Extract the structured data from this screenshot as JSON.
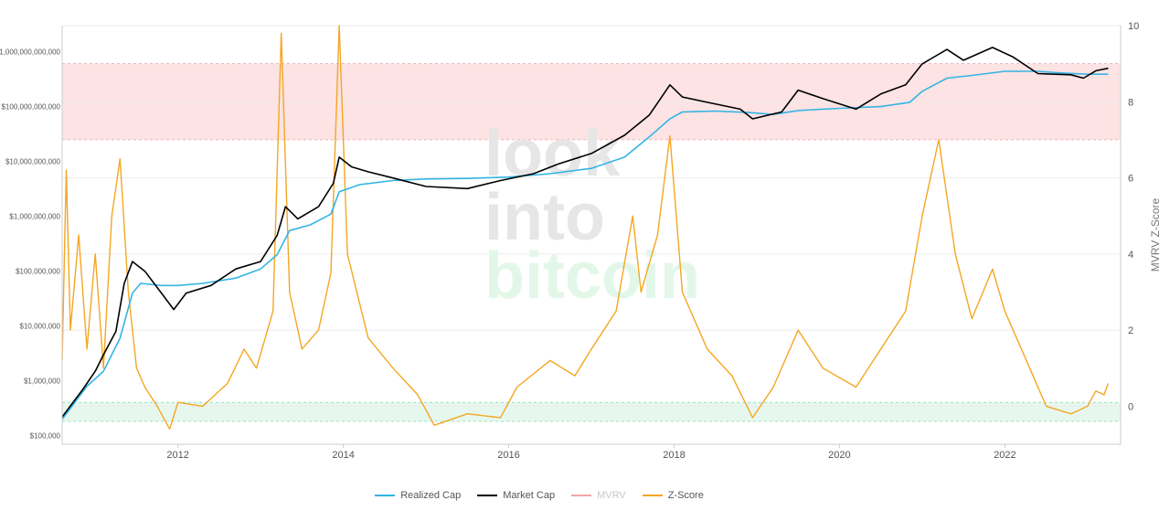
{
  "chart_data": {
    "type": "line",
    "x_range": [
      2010.6,
      2023.4
    ],
    "left_axis": {
      "scale": "log",
      "range_usd": [
        70000,
        3000000000000
      ],
      "tick_labels": [
        "$100,000",
        "$1,000,000",
        "$10,000,000",
        "$100,000,000",
        "$1,000,000,000",
        "$10,000,000,000",
        "$100,000,000,000",
        "$1,000,000,000,000"
      ],
      "tick_values": [
        100000,
        1000000,
        10000000,
        100000000,
        1000000000,
        10000000000,
        100000000000,
        1000000000000
      ]
    },
    "right_axis": {
      "label": "MVRV Z-Score",
      "range": [
        -1,
        10
      ],
      "tick_labels": [
        "0",
        "2",
        "4",
        "6",
        "8",
        "10"
      ],
      "tick_values": [
        0,
        2,
        4,
        6,
        8,
        10
      ]
    },
    "x_tick_labels": [
      "2012",
      "2014",
      "2016",
      "2018",
      "2020",
      "2022"
    ],
    "x_tick_values": [
      2012,
      2014,
      2016,
      2018,
      2020,
      2022
    ],
    "bands": [
      {
        "name": "overvalued-zone",
        "from": 7,
        "to": 9,
        "color": "#fde3e3"
      },
      {
        "name": "undervalued-zone",
        "from": -0.4,
        "to": 0.1,
        "color": "#e6f8ee"
      }
    ],
    "grid": true,
    "legend_position": "bottom-center",
    "series": [
      {
        "name": "Realized Cap",
        "axis": "left",
        "color": "#33b5e5",
        "points": [
          [
            2010.6,
            200000
          ],
          [
            2010.75,
            400000
          ],
          [
            2010.9,
            800000
          ],
          [
            2011.1,
            1500000
          ],
          [
            2011.3,
            6000000
          ],
          [
            2011.45,
            40000000
          ],
          [
            2011.55,
            60000000
          ],
          [
            2011.8,
            55000000
          ],
          [
            2012.0,
            55000000
          ],
          [
            2012.3,
            60000000
          ],
          [
            2012.7,
            75000000
          ],
          [
            2013.0,
            110000000
          ],
          [
            2013.2,
            200000000
          ],
          [
            2013.35,
            550000000
          ],
          [
            2013.6,
            700000000
          ],
          [
            2013.85,
            1100000000
          ],
          [
            2013.95,
            2800000000
          ],
          [
            2014.2,
            3800000000
          ],
          [
            2014.6,
            4500000000
          ],
          [
            2015.0,
            4800000000
          ],
          [
            2015.5,
            4900000000
          ],
          [
            2016.0,
            5200000000
          ],
          [
            2016.5,
            6000000000
          ],
          [
            2017.0,
            7500000000
          ],
          [
            2017.4,
            12000000000
          ],
          [
            2017.7,
            28000000000
          ],
          [
            2017.95,
            60000000000
          ],
          [
            2018.1,
            80000000000
          ],
          [
            2018.5,
            83000000000
          ],
          [
            2018.9,
            78000000000
          ],
          [
            2019.2,
            72000000000
          ],
          [
            2019.5,
            85000000000
          ],
          [
            2020.0,
            93000000000
          ],
          [
            2020.5,
            100000000000
          ],
          [
            2020.85,
            120000000000
          ],
          [
            2021.0,
            190000000000
          ],
          [
            2021.3,
            330000000000
          ],
          [
            2021.6,
            370000000000
          ],
          [
            2022.0,
            440000000000
          ],
          [
            2022.4,
            440000000000
          ],
          [
            2022.7,
            410000000000
          ],
          [
            2023.0,
            390000000000
          ],
          [
            2023.25,
            390000000000
          ]
        ]
      },
      {
        "name": "Market Cap",
        "axis": "left",
        "color": "#000000",
        "points": [
          [
            2010.6,
            220000
          ],
          [
            2010.7,
            350000
          ],
          [
            2010.85,
            700000
          ],
          [
            2011.0,
            1500000
          ],
          [
            2011.1,
            3000000
          ],
          [
            2011.25,
            8000000
          ],
          [
            2011.35,
            60000000
          ],
          [
            2011.45,
            150000000
          ],
          [
            2011.6,
            100000000
          ],
          [
            2011.8,
            40000000
          ],
          [
            2011.95,
            20000000
          ],
          [
            2012.1,
            40000000
          ],
          [
            2012.4,
            55000000
          ],
          [
            2012.7,
            110000000
          ],
          [
            2013.0,
            150000000
          ],
          [
            2013.2,
            450000000
          ],
          [
            2013.3,
            1500000000
          ],
          [
            2013.45,
            900000000
          ],
          [
            2013.7,
            1500000000
          ],
          [
            2013.88,
            4000000000
          ],
          [
            2013.95,
            12000000000
          ],
          [
            2014.1,
            8000000000
          ],
          [
            2014.3,
            6500000000
          ],
          [
            2014.6,
            5000000000
          ],
          [
            2015.0,
            3500000000
          ],
          [
            2015.5,
            3200000000
          ],
          [
            2015.9,
            4500000000
          ],
          [
            2016.3,
            6000000000
          ],
          [
            2016.6,
            9000000000
          ],
          [
            2017.0,
            14000000000
          ],
          [
            2017.4,
            30000000000
          ],
          [
            2017.7,
            70000000000
          ],
          [
            2017.95,
            250000000000
          ],
          [
            2018.1,
            150000000000
          ],
          [
            2018.4,
            120000000000
          ],
          [
            2018.8,
            90000000000
          ],
          [
            2018.95,
            60000000000
          ],
          [
            2019.3,
            80000000000
          ],
          [
            2019.5,
            200000000000
          ],
          [
            2019.8,
            140000000000
          ],
          [
            2020.2,
            90000000000
          ],
          [
            2020.5,
            170000000000
          ],
          [
            2020.8,
            250000000000
          ],
          [
            2021.0,
            600000000000
          ],
          [
            2021.3,
            1100000000000
          ],
          [
            2021.5,
            700000000000
          ],
          [
            2021.85,
            1200000000000
          ],
          [
            2022.1,
            800000000000
          ],
          [
            2022.4,
            400000000000
          ],
          [
            2022.8,
            380000000000
          ],
          [
            2022.95,
            330000000000
          ],
          [
            2023.1,
            450000000000
          ],
          [
            2023.25,
            500000000000
          ]
        ]
      },
      {
        "name": "MVRV",
        "axis": "right",
        "color": "#f4a5a5",
        "hidden": true,
        "points": []
      },
      {
        "name": "Z-Score",
        "axis": "right",
        "color": "#f5a623",
        "points": [
          [
            2010.6,
            1.2
          ],
          [
            2010.65,
            6.2
          ],
          [
            2010.7,
            2.0
          ],
          [
            2010.8,
            4.5
          ],
          [
            2010.9,
            1.5
          ],
          [
            2011.0,
            4.0
          ],
          [
            2011.1,
            1.0
          ],
          [
            2011.2,
            5.0
          ],
          [
            2011.3,
            6.5
          ],
          [
            2011.4,
            3.0
          ],
          [
            2011.5,
            1.0
          ],
          [
            2011.6,
            0.5
          ],
          [
            2011.75,
            0.0
          ],
          [
            2011.9,
            -0.6
          ],
          [
            2012.0,
            0.1
          ],
          [
            2012.3,
            0.0
          ],
          [
            2012.6,
            0.6
          ],
          [
            2012.8,
            1.5
          ],
          [
            2012.95,
            1.0
          ],
          [
            2013.15,
            2.5
          ],
          [
            2013.25,
            9.8
          ],
          [
            2013.35,
            3.0
          ],
          [
            2013.5,
            1.5
          ],
          [
            2013.7,
            2.0
          ],
          [
            2013.85,
            3.5
          ],
          [
            2013.95,
            10.0
          ],
          [
            2014.05,
            4.0
          ],
          [
            2014.3,
            1.8
          ],
          [
            2014.6,
            1.0
          ],
          [
            2014.9,
            0.3
          ],
          [
            2015.1,
            -0.5
          ],
          [
            2015.5,
            -0.2
          ],
          [
            2015.9,
            -0.3
          ],
          [
            2016.1,
            0.5
          ],
          [
            2016.5,
            1.2
          ],
          [
            2016.8,
            0.8
          ],
          [
            2017.0,
            1.5
          ],
          [
            2017.3,
            2.5
          ],
          [
            2017.5,
            5.0
          ],
          [
            2017.6,
            3.0
          ],
          [
            2017.8,
            4.5
          ],
          [
            2017.95,
            7.1
          ],
          [
            2018.1,
            3.0
          ],
          [
            2018.4,
            1.5
          ],
          [
            2018.7,
            0.8
          ],
          [
            2018.95,
            -0.3
          ],
          [
            2019.2,
            0.5
          ],
          [
            2019.5,
            2.0
          ],
          [
            2019.8,
            1.0
          ],
          [
            2020.2,
            0.5
          ],
          [
            2020.5,
            1.5
          ],
          [
            2020.8,
            2.5
          ],
          [
            2021.0,
            5.0
          ],
          [
            2021.2,
            7.0
          ],
          [
            2021.4,
            4.0
          ],
          [
            2021.6,
            2.3
          ],
          [
            2021.85,
            3.6
          ],
          [
            2022.0,
            2.5
          ],
          [
            2022.3,
            1.0
          ],
          [
            2022.5,
            0.0
          ],
          [
            2022.8,
            -0.2
          ],
          [
            2023.0,
            0.0
          ],
          [
            2023.1,
            0.4
          ],
          [
            2023.2,
            0.3
          ],
          [
            2023.25,
            0.6
          ]
        ]
      }
    ]
  },
  "watermark": {
    "line1": "look",
    "line2": "into",
    "line3": "bitcoin"
  },
  "legend": {
    "items": [
      "Realized Cap",
      "Market Cap",
      "MVRV",
      "Z-Score"
    ]
  }
}
